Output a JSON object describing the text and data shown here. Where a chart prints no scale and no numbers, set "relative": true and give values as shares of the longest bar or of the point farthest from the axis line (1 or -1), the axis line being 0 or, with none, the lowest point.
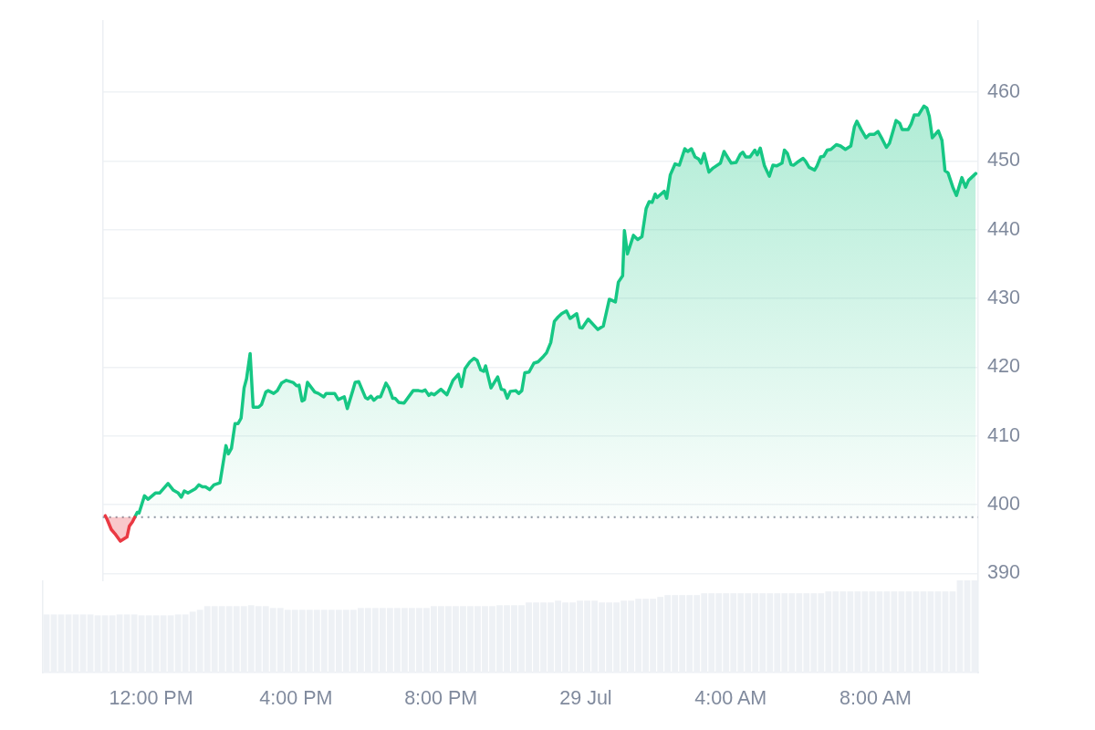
{
  "chart_data": [
    {
      "type": "area",
      "series": [
        {
          "color": "#ea3943",
          "x": [
            "--07-28T10:44",
            "--07-28T10:47",
            "--07-28T10:54",
            "--07-28T11:00",
            "--07-28T11:09",
            "--07-28T11:18",
            "--07-28T11:20",
            "--07-28T11:24",
            "--07-28T11:29",
            "--07-28T11:33"
          ],
          "values": [
            398.4,
            397.9,
            396.4,
            395.8,
            394.7,
            395.2,
            395.3,
            396.9,
            397.5,
            398.2
          ]
        },
        {
          "color": "#16c784",
          "x": [
            "--07-28T11:33",
            "--07-28T11:37",
            "--07-28T11:40",
            "--07-28T11:49",
            "--07-28T11:55",
            "--07-28T12:07",
            "--07-28T12:14",
            "--07-28T12:28",
            "--07-28T12:37",
            "--07-28T12:45",
            "--07-28T12:50",
            "--07-28T12:55",
            "--07-28T13:01",
            "--07-28T13:13",
            "--07-28T13:19",
            "--07-28T13:25",
            "--07-28T13:30",
            "--07-28T13:37",
            "--07-28T13:44",
            "--07-28T13:54",
            "--07-28T14:04",
            "--07-28T14:08",
            "--07-28T14:13",
            "--07-28T14:19",
            "--07-28T14:24",
            "--07-28T14:29",
            "--07-28T14:34",
            "--07-28T14:38",
            "--07-28T14:44",
            "--07-28T14:49",
            "--07-28T14:58",
            "--07-28T15:03",
            "--07-28T15:10",
            "--07-28T15:14",
            "--07-28T15:23",
            "--07-28T15:29",
            "--07-28T15:36",
            "--07-28T15:44",
            "--07-28T15:55",
            "--07-28T16:01",
            "--07-28T16:05",
            "--07-28T16:10",
            "--07-28T16:14",
            "--07-28T16:19",
            "--07-28T16:31",
            "--07-28T16:37",
            "--07-28T16:46",
            "--07-28T16:50",
            "--07-28T17:04",
            "--07-28T17:10",
            "--07-28T17:20",
            "--07-28T17:25",
            "--07-28T17:34",
            "--07-28T17:38",
            "--07-28T17:44",
            "--07-28T17:55",
            "--07-28T17:59",
            "--07-28T18:04",
            "--07-28T18:09",
            "--07-28T18:15",
            "--07-28T18:20",
            "--07-28T18:29",
            "--07-28T18:34",
            "--07-28T18:40",
            "--07-28T18:44",
            "--07-28T18:50",
            "--07-28T18:59",
            "--07-28T19:14",
            "--07-28T19:23",
            "--07-28T19:29",
            "--07-28T19:34",
            "--07-28T19:40",
            "--07-28T19:44",
            "--07-28T19:49",
            "--07-28T20:00",
            "--07-28T20:10",
            "--07-28T20:20",
            "--07-28T20:29",
            "--07-28T20:34",
            "--07-28T20:40",
            "--07-28T20:48",
            "--07-28T20:55",
            "--07-28T21:00",
            "--07-28T21:06",
            "--07-28T21:11",
            "--07-28T21:14",
            "--07-28T21:23",
            "--07-28T21:34",
            "--07-28T21:40",
            "--07-28T21:45",
            "--07-28T21:50",
            "--07-28T21:55",
            "--07-28T22:04",
            "--07-28T22:09",
            "--07-28T22:14",
            "--07-28T22:19",
            "--07-28T22:26",
            "--07-28T22:34",
            "--07-28T22:41",
            "--07-28T22:50",
            "--07-28T22:55",
            "--07-28T23:02",
            "--07-28T23:08",
            "--07-28T23:14",
            "--07-28T23:20",
            "--07-28T23:28",
            "--07-28T23:34",
            "--07-28T23:45",
            "--07-28T23:50",
            "--07-28T23:54",
            "--07-29T00:04",
            "--07-29T00:20",
            "--07-29T00:29",
            "--07-29T00:39",
            "--07-29T00:49",
            "--07-29T00:54",
            "--07-29T01:01",
            "--07-29T01:04",
            "--07-29T01:09",
            "--07-29T01:19",
            "--07-29T01:26",
            "--07-29T01:33",
            "--07-29T01:40",
            "--07-29T01:45",
            "--07-29T01:50",
            "--07-29T01:55",
            "--07-29T01:58",
            "--07-29T02:10",
            "--07-29T02:14",
            "--07-29T02:20",
            "--07-29T02:28",
            "--07-29T02:35",
            "--07-29T02:44",
            "--07-29T02:49",
            "--07-29T02:55",
            "--07-29T03:01",
            "--07-29T03:07",
            "--07-29T03:11",
            "--07-29T03:16",
            "--07-29T03:24",
            "--07-29T03:31",
            "--07-29T03:43",
            "--07-29T03:49",
            "--07-29T04:01",
            "--07-29T04:09",
            "--07-29T04:16",
            "--07-29T04:20",
            "--07-29T04:25",
            "--07-29T04:32",
            "--07-29T04:40",
            "--07-29T04:44",
            "--07-29T04:49",
            "--07-29T04:56",
            "--07-29T05:04",
            "--07-29T05:10",
            "--07-29T05:16",
            "--07-29T05:25",
            "--07-29T05:29",
            "--07-29T05:34",
            "--07-29T05:40",
            "--07-29T05:44",
            "--07-29T05:50",
            "--07-29T06:00",
            "--07-29T06:04",
            "--07-29T06:10",
            "--07-29T06:19",
            "--07-29T06:23",
            "--07-29T06:29",
            "--07-29T06:34",
            "--07-29T06:40",
            "--07-29T06:46",
            "--07-29T06:55",
            "--07-29T07:02",
            "--07-29T07:10",
            "--07-29T07:19",
            "--07-29T07:25",
            "--07-29T07:29",
            "--07-29T07:36",
            "--07-29T07:44",
            "--07-29T07:50",
            "--07-29T07:58",
            "--07-29T08:04",
            "--07-29T08:11",
            "--07-29T08:18",
            "--07-29T08:23",
            "--07-29T08:28",
            "--07-29T08:34",
            "--07-29T08:40",
            "--07-29T08:44",
            "--07-29T08:54",
            "--07-29T08:59",
            "--07-29T09:04",
            "--07-29T09:11",
            "--07-29T09:20",
            "--07-29T09:25",
            "--07-29T09:29",
            "--07-29T09:34",
            "--07-29T09:44",
            "--07-29T09:50",
            "--07-29T09:55",
            "--07-29T10:00",
            "--07-29T10:08",
            "--07-29T10:14",
            "--07-29T10:23",
            "--07-29T10:29",
            "--07-29T10:34",
            "--07-29T10:46"
          ],
          "values": [
            398.2,
            398.9,
            398.8,
            401.3,
            400.8,
            401.7,
            401.7,
            403.1,
            402.1,
            401.7,
            401.1,
            402.0,
            401.7,
            402.3,
            402.9,
            402.6,
            402.6,
            402.2,
            402.9,
            403.2,
            408.6,
            407.4,
            408.2,
            411.8,
            411.8,
            412.6,
            417.0,
            418.3,
            422.0,
            414.2,
            414.2,
            414.6,
            416.4,
            416.6,
            416.2,
            416.6,
            417.7,
            418.1,
            417.8,
            417.3,
            417.4,
            415.1,
            415.3,
            417.8,
            416.4,
            416.2,
            415.7,
            416.2,
            416.2,
            415.3,
            415.7,
            414.0,
            416.6,
            417.8,
            417.9,
            415.6,
            415.4,
            415.8,
            415.2,
            415.7,
            415.7,
            417.7,
            417.0,
            415.5,
            415.5,
            414.9,
            414.8,
            416.6,
            416.6,
            416.5,
            416.7,
            415.9,
            416.2,
            416.0,
            416.8,
            416.0,
            418.1,
            419.0,
            417.2,
            419.8,
            420.8,
            421.3,
            421.0,
            419.6,
            419.4,
            420.2,
            417.0,
            418.6,
            416.8,
            416.7,
            415.5,
            416.5,
            416.6,
            416.2,
            416.6,
            419.2,
            419.3,
            420.6,
            420.8,
            421.6,
            422.1,
            423.6,
            426.7,
            427.3,
            427.8,
            428.2,
            427.1,
            427.8,
            425.8,
            425.7,
            427.0,
            425.5,
            426.0,
            429.9,
            429.5,
            432.4,
            433.3,
            439.9,
            436.5,
            439.2,
            438.6,
            439.0,
            443.1,
            444.1,
            444.0,
            445.2,
            444.7,
            445.6,
            444.6,
            448.0,
            449.6,
            449.4,
            451.8,
            451.4,
            451.8,
            450.6,
            450.3,
            449.7,
            451.1,
            448.4,
            449.0,
            449.7,
            451.4,
            449.7,
            449.8,
            451.0,
            451.3,
            450.6,
            450.6,
            451.6,
            450.9,
            451.9,
            449.3,
            447.8,
            449.4,
            449.3,
            449.7,
            451.6,
            451.1,
            449.5,
            449.4,
            449.8,
            450.4,
            450.0,
            449.1,
            448.7,
            449.3,
            450.6,
            450.7,
            451.6,
            451.7,
            452.4,
            452.2,
            451.7,
            452.2,
            455.0,
            455.8,
            454.6,
            453.4,
            453.9,
            453.9,
            454.3,
            453.2,
            452.0,
            452.6,
            454.1,
            455.9,
            455.5,
            454.6,
            454.6,
            455.4,
            456.7,
            456.7,
            458.0,
            457.7,
            456.5,
            453.4,
            454.4,
            453.0,
            448.6,
            448.3,
            446.2,
            445.0,
            447.6,
            446.2,
            447.2,
            448.2
          ]
        }
      ],
      "xlim": [
        "--07-28T10:40",
        "--07-29T10:50"
      ],
      "xticks": [
        {
          "value": "--07-28T12:00",
          "label": "12:00 PM"
        },
        {
          "value": "--07-28T16:00",
          "label": "4:00 PM"
        },
        {
          "value": "--07-28T20:00",
          "label": "8:00 PM"
        },
        {
          "value": "--07-29T00:00",
          "label": "29 Jul"
        },
        {
          "value": "--07-29T04:00",
          "label": "4:00 AM"
        },
        {
          "value": "--07-29T08:00",
          "label": "8:00 AM"
        }
      ],
      "ylim": [
        389.0,
        470.4
      ],
      "yticks": [
        390,
        400,
        410,
        420,
        430,
        440,
        450,
        460
      ],
      "grid": "y",
      "ref_lines": [
        {
          "axis": "y",
          "value": 398.2,
          "color": "#8f96a3",
          "line_style": "dotted"
        }
      ]
    },
    {
      "type": "bar",
      "relative": true,
      "color": "#eef1f5",
      "categories": [
        null,
        null,
        null,
        null,
        null,
        null,
        null,
        null,
        null,
        null,
        null,
        null,
        null,
        null,
        null,
        null,
        null,
        null,
        null,
        null,
        null,
        null,
        null,
        null,
        null,
        null,
        null,
        null,
        null,
        null,
        null,
        null,
        null,
        null,
        null,
        null,
        null,
        null,
        null,
        null,
        null,
        null,
        null,
        null,
        null,
        null,
        null,
        null,
        null,
        null,
        null,
        null,
        null,
        null,
        null,
        null,
        null,
        null,
        null,
        null,
        null,
        null,
        null,
        null,
        null,
        null,
        null,
        null,
        null,
        null,
        null,
        null,
        null,
        null,
        null,
        null,
        null,
        null,
        null,
        null,
        null,
        null,
        null,
        null,
        null,
        null,
        null,
        null,
        null,
        null,
        null,
        null,
        null,
        null,
        null,
        null,
        null,
        null,
        null,
        null,
        null,
        null,
        null,
        null,
        null,
        null,
        null,
        null,
        null,
        null,
        null,
        null,
        null,
        null,
        null,
        null,
        null,
        null,
        null,
        null,
        null,
        null,
        null,
        null,
        null,
        null,
        null,
        null
      ],
      "values": [
        0.63,
        0.63,
        0.63,
        0.63,
        0.63,
        0.63,
        0.63,
        0.62,
        0.62,
        0.62,
        0.63,
        0.63,
        0.63,
        0.62,
        0.62,
        0.62,
        0.62,
        0.62,
        0.63,
        0.63,
        0.66,
        0.68,
        0.72,
        0.72,
        0.72,
        0.72,
        0.72,
        0.72,
        0.73,
        0.72,
        0.72,
        0.7,
        0.7,
        0.68,
        0.68,
        0.68,
        0.68,
        0.68,
        0.68,
        0.68,
        0.68,
        0.68,
        0.68,
        0.7,
        0.7,
        0.7,
        0.7,
        0.7,
        0.7,
        0.7,
        0.7,
        0.7,
        0.7,
        0.72,
        0.72,
        0.72,
        0.72,
        0.72,
        0.72,
        0.72,
        0.72,
        0.72,
        0.73,
        0.73,
        0.73,
        0.73,
        0.76,
        0.76,
        0.76,
        0.76,
        0.78,
        0.76,
        0.76,
        0.78,
        0.78,
        0.78,
        0.76,
        0.76,
        0.76,
        0.78,
        0.78,
        0.8,
        0.8,
        0.8,
        0.82,
        0.84,
        0.84,
        0.84,
        0.84,
        0.84,
        0.86,
        0.86,
        0.86,
        0.86,
        0.86,
        0.86,
        0.86,
        0.86,
        0.86,
        0.86,
        0.86,
        0.86,
        0.86,
        0.86,
        0.86,
        0.86,
        0.86,
        0.88,
        0.88,
        0.88,
        0.88,
        0.88,
        0.88,
        0.88,
        0.88,
        0.88,
        0.88,
        0.88,
        0.88,
        0.88,
        0.88,
        0.88,
        0.88,
        0.88,
        0.88,
        1,
        1,
        1
      ]
    }
  ]
}
